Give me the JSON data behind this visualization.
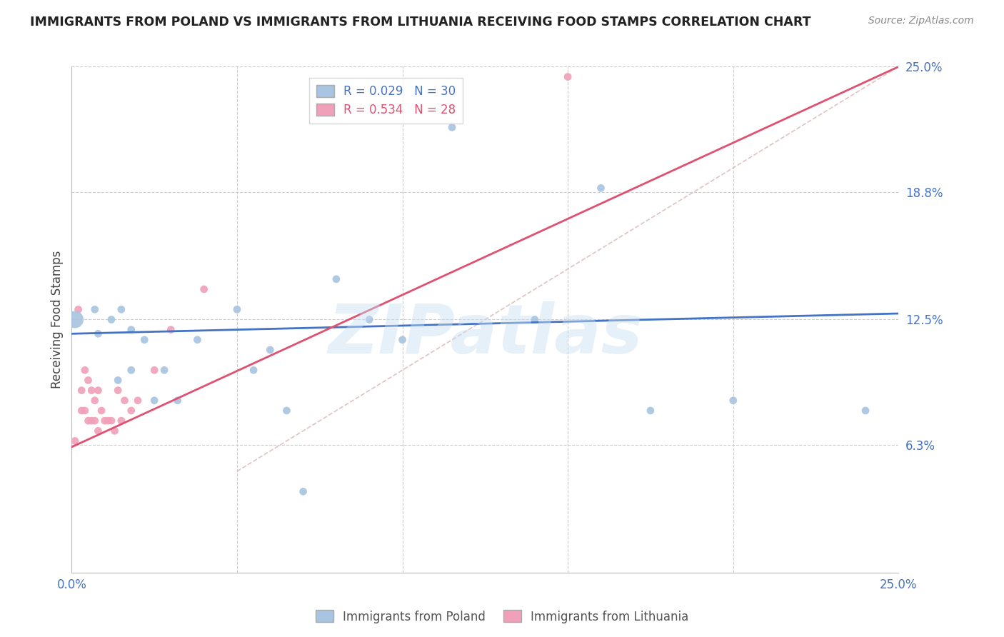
{
  "title": "IMMIGRANTS FROM POLAND VS IMMIGRANTS FROM LITHUANIA RECEIVING FOOD STAMPS CORRELATION CHART",
  "source": "Source: ZipAtlas.com",
  "ylabel": "Receiving Food Stamps",
  "xlim": [
    0.0,
    0.25
  ],
  "ylim": [
    0.0,
    0.25
  ],
  "xtick_positions": [
    0.0,
    0.25
  ],
  "xtick_labels": [
    "0.0%",
    "25.0%"
  ],
  "ytick_values": [
    0.063,
    0.125,
    0.188,
    0.25
  ],
  "ytick_labels": [
    "6.3%",
    "12.5%",
    "18.8%",
    "25.0%"
  ],
  "background_color": "#ffffff",
  "grid_color": "#cccccc",
  "watermark": "ZIPatlas",
  "poland_color": "#a8c4e0",
  "lithuania_color": "#f0a0b8",
  "poland_line_color": "#4472c4",
  "lithuania_line_color": "#e05070",
  "diagonal_color": "#dbb8b8",
  "poland_scatter_x": [
    0.001,
    0.007,
    0.008,
    0.012,
    0.014,
    0.015,
    0.018,
    0.018,
    0.022,
    0.025,
    0.028,
    0.032,
    0.038,
    0.05,
    0.055,
    0.06,
    0.065,
    0.07,
    0.08,
    0.09,
    0.1,
    0.115,
    0.14,
    0.16,
    0.175,
    0.2,
    0.24
  ],
  "poland_scatter_y": [
    0.125,
    0.13,
    0.118,
    0.125,
    0.095,
    0.13,
    0.12,
    0.1,
    0.115,
    0.085,
    0.1,
    0.085,
    0.115,
    0.13,
    0.1,
    0.11,
    0.08,
    0.04,
    0.145,
    0.125,
    0.115,
    0.22,
    0.125,
    0.19,
    0.08,
    0.085,
    0.08
  ],
  "poland_sizes": [
    300,
    60,
    60,
    60,
    60,
    60,
    60,
    60,
    60,
    60,
    60,
    60,
    60,
    60,
    60,
    60,
    60,
    60,
    60,
    60,
    60,
    60,
    60,
    60,
    60,
    60,
    60
  ],
  "lithuania_scatter_x": [
    0.001,
    0.002,
    0.003,
    0.003,
    0.004,
    0.004,
    0.005,
    0.005,
    0.006,
    0.006,
    0.007,
    0.007,
    0.008,
    0.008,
    0.009,
    0.01,
    0.011,
    0.012,
    0.013,
    0.014,
    0.015,
    0.016,
    0.018,
    0.02,
    0.025,
    0.03,
    0.04,
    0.15
  ],
  "lithuania_scatter_y": [
    0.065,
    0.13,
    0.09,
    0.08,
    0.1,
    0.08,
    0.095,
    0.075,
    0.075,
    0.09,
    0.075,
    0.085,
    0.07,
    0.09,
    0.08,
    0.075,
    0.075,
    0.075,
    0.07,
    0.09,
    0.075,
    0.085,
    0.08,
    0.085,
    0.1,
    0.12,
    0.14,
    0.245
  ],
  "lithuania_sizes": [
    60,
    60,
    60,
    60,
    60,
    60,
    60,
    60,
    60,
    60,
    60,
    60,
    60,
    60,
    60,
    60,
    60,
    60,
    60,
    60,
    60,
    60,
    60,
    60,
    60,
    60,
    60,
    60
  ],
  "poland_line_x": [
    0.0,
    0.25
  ],
  "poland_line_y": [
    0.118,
    0.128
  ],
  "lithuania_line_x": [
    0.0,
    0.25
  ],
  "lithuania_line_y": [
    0.062,
    0.25
  ],
  "diagonal_line_x": [
    0.05,
    0.25
  ],
  "diagonal_line_y": [
    0.05,
    0.25
  ]
}
